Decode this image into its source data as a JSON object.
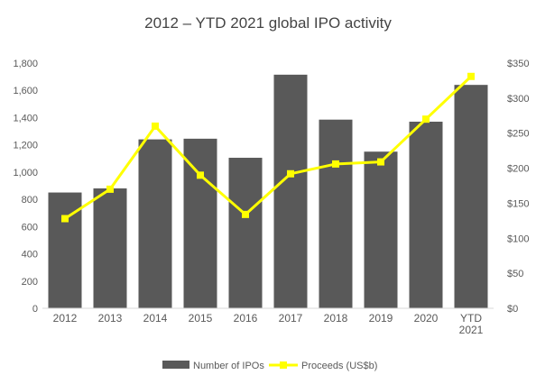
{
  "chart_data": {
    "type": "bar",
    "title": "2012 – YTD 2021 global IPO activity",
    "categories": [
      [
        "2012"
      ],
      [
        "2013"
      ],
      [
        "2014"
      ],
      [
        "2015"
      ],
      [
        "2016"
      ],
      [
        "2017"
      ],
      [
        "2018"
      ],
      [
        "2019"
      ],
      [
        "2020"
      ],
      [
        "YTD",
        "2021"
      ]
    ],
    "series": [
      {
        "name": "Number of IPOs",
        "type": "bar",
        "axis": "left",
        "color": "#595959",
        "values": [
          850,
          880,
          1240,
          1245,
          1105,
          1715,
          1385,
          1150,
          1370,
          1640
        ]
      },
      {
        "name": "Proceeds (US$b)",
        "type": "line",
        "axis": "right",
        "color": "#ffff00",
        "values": [
          128,
          170,
          260,
          190,
          134,
          192,
          206,
          209,
          270,
          331
        ]
      }
    ],
    "y_left": {
      "min": 0,
      "max": 1800,
      "step": 200,
      "ticks": [
        "0",
        "200",
        "400",
        "600",
        "800",
        "1,000",
        "1,200",
        "1,400",
        "1,600",
        "1,800"
      ]
    },
    "y_right": {
      "min": 0,
      "max": 350,
      "step": 50,
      "ticks": [
        "$0",
        "$50",
        "$100",
        "$150",
        "$200",
        "$250",
        "$300",
        "$350"
      ]
    },
    "grid": false,
    "legend_position": "bottom"
  }
}
